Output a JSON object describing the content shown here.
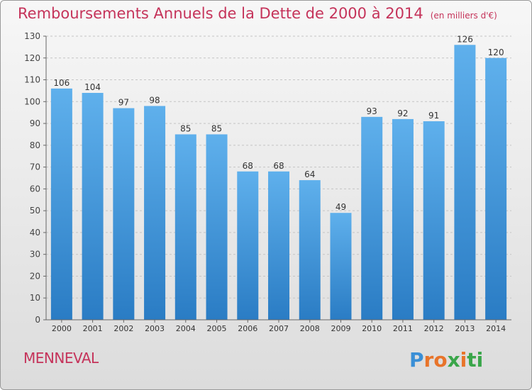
{
  "chart_data": {
    "type": "bar",
    "title": "Remboursements Annuels de la Dette de 2000 à 2014",
    "subtitle": "(en milliers d'€)",
    "categories": [
      "2000",
      "2001",
      "2002",
      "2003",
      "2004",
      "2005",
      "2006",
      "2007",
      "2008",
      "2009",
      "2010",
      "2011",
      "2012",
      "2013",
      "2014"
    ],
    "values": [
      106,
      104,
      97,
      98,
      85,
      85,
      68,
      68,
      64,
      49,
      93,
      92,
      91,
      126,
      120
    ],
    "ylim": [
      0,
      130
    ],
    "yticks": [
      0,
      10,
      20,
      30,
      40,
      50,
      60,
      70,
      80,
      90,
      100,
      110,
      120,
      130
    ],
    "grid": true,
    "bar_color_top": "#5fb0ec",
    "bar_color_bottom": "#2a7cc4"
  },
  "footer": {
    "commune": "MENNEVAL",
    "logo_letters": [
      "P",
      "r",
      "o",
      "x",
      "i",
      "t",
      "i"
    ],
    "logo_colors": [
      "#3a8fd6",
      "#e8742a",
      "#e8742a",
      "#3aa64a",
      "#e8742a",
      "#3aa64a",
      "#3aa64a"
    ]
  }
}
